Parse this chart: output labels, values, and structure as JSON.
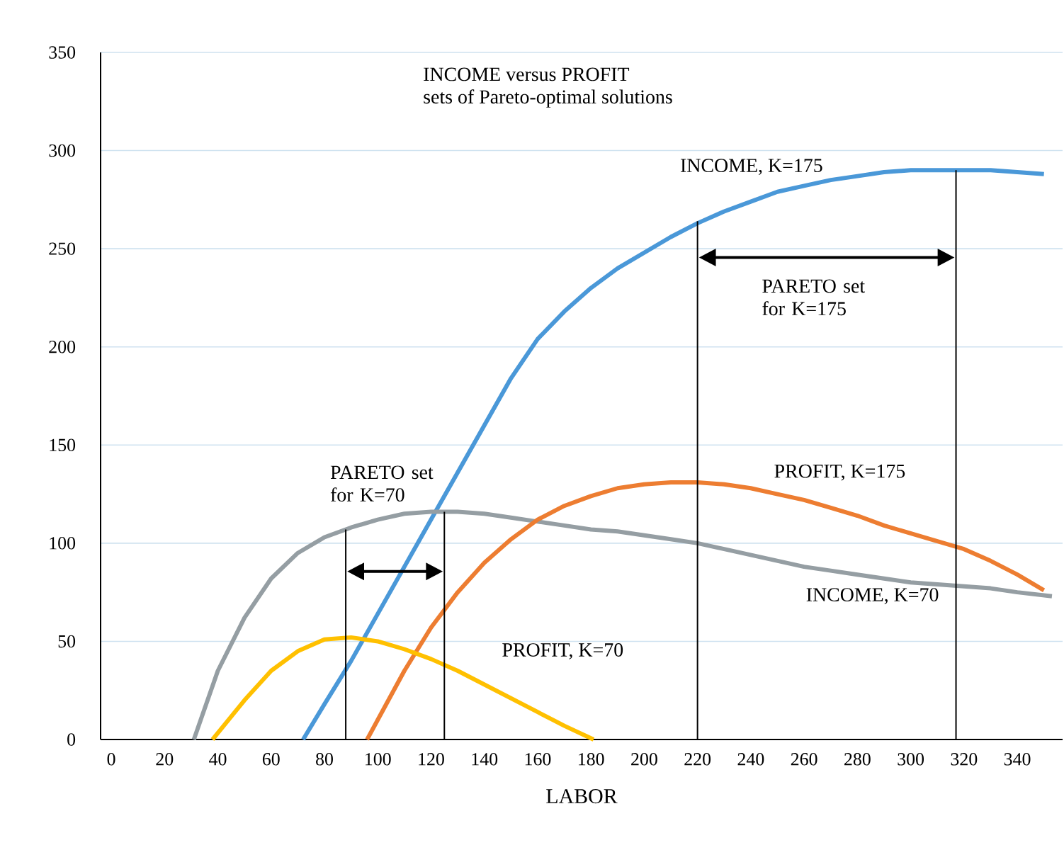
{
  "chart_data": {
    "type": "line",
    "title": "INCOME  versus PROFIT",
    "subtitle": "sets of Pareto-optimal solutions",
    "xlabel": "LABOR",
    "xlim": [
      -4,
      357
    ],
    "xticks": [
      0,
      20,
      40,
      60,
      80,
      100,
      120,
      140,
      160,
      180,
      200,
      220,
      240,
      260,
      280,
      300,
      320,
      340
    ],
    "ylim": [
      0,
      350
    ],
    "yticks": [
      0,
      50,
      100,
      150,
      200,
      250,
      300,
      350
    ],
    "grid": "y",
    "series": [
      {
        "name": "INCOME, K=175",
        "color": "#4a98d8",
        "x": [
          72,
          80,
          90,
          100,
          110,
          120,
          130,
          140,
          150,
          160,
          170,
          180,
          190,
          200,
          210,
          220,
          230,
          240,
          250,
          260,
          270,
          280,
          290,
          300,
          310,
          320,
          330,
          340,
          350
        ],
        "values": [
          0,
          18,
          40,
          64,
          88,
          112,
          136,
          160,
          184,
          204,
          218,
          230,
          240,
          248,
          256,
          263,
          269,
          274,
          279,
          282,
          285,
          287,
          289,
          290,
          290,
          290,
          290,
          289,
          288
        ]
      },
      {
        "name": "INCOME, K=70",
        "color": "#959ea3",
        "x": [
          31,
          40,
          50,
          60,
          70,
          80,
          90,
          100,
          110,
          120,
          130,
          140,
          150,
          160,
          170,
          180,
          190,
          200,
          210,
          220,
          230,
          240,
          250,
          260,
          270,
          280,
          290,
          300,
          310,
          320,
          330,
          340,
          353
        ],
        "values": [
          0,
          35,
          62,
          82,
          95,
          103,
          108,
          112,
          115,
          116,
          116,
          115,
          113,
          111,
          109,
          107,
          106,
          104,
          102,
          100,
          97,
          94,
          91,
          88,
          86,
          84,
          82,
          80,
          79,
          78,
          77,
          75,
          73
        ]
      },
      {
        "name": "PROFIT, K=175",
        "color": "#ed7d31",
        "x": [
          96,
          100,
          110,
          120,
          130,
          140,
          150,
          160,
          170,
          180,
          190,
          200,
          210,
          220,
          230,
          240,
          250,
          260,
          270,
          280,
          290,
          300,
          310,
          320,
          330,
          340,
          350
        ],
        "values": [
          0,
          10,
          35,
          57,
          75,
          90,
          102,
          112,
          119,
          124,
          128,
          130,
          131,
          131,
          130,
          128,
          125,
          122,
          118,
          114,
          109,
          105,
          101,
          97,
          91,
          84,
          76
        ]
      },
      {
        "name": "PROFIT, K=70",
        "color": "#ffc000",
        "x": [
          38,
          50,
          60,
          70,
          80,
          90,
          100,
          110,
          120,
          130,
          140,
          150,
          160,
          170,
          181
        ],
        "values": [
          0,
          20,
          35,
          45,
          51,
          52,
          50,
          46,
          41,
          35,
          28,
          21,
          14,
          7,
          0
        ]
      },
      {
        "color": "#000000",
        "x": [
          88,
          88
        ],
        "values": [
          0,
          107
        ]
      },
      {
        "color": "#000000",
        "x": [
          125,
          125
        ],
        "values": [
          0,
          116
        ]
      },
      {
        "color": "#000000",
        "x": [
          220,
          220
        ],
        "values": [
          0,
          264
        ]
      },
      {
        "color": "#000000",
        "x": [
          317,
          317
        ],
        "values": [
          0,
          290
        ]
      }
    ],
    "annotations": [
      "PARETO set for K=70",
      "PARETO set for K=175"
    ]
  }
}
